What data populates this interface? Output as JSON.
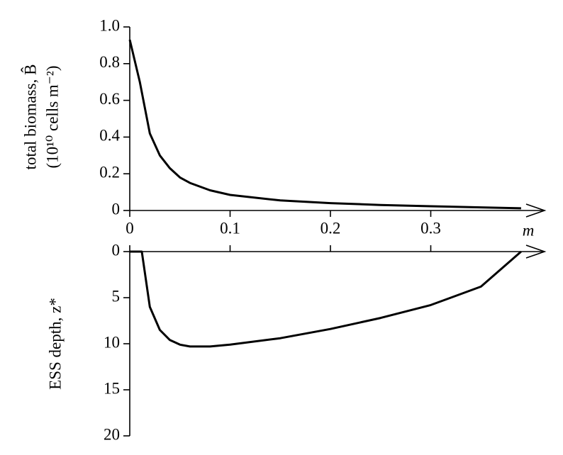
{
  "chart_data": [
    {
      "type": "line",
      "ylabel": [
        "total biomass, B̂",
        "(10¹⁰ cells m⁻²)"
      ],
      "xlabel": "m",
      "xlim": [
        0,
        0.4
      ],
      "xticks": [
        0,
        0.1,
        0.2,
        0.3
      ],
      "ylim": [
        0,
        1
      ],
      "yticks": [
        0,
        0.2,
        0.4,
        0.6,
        0.8,
        {
          "value": 1,
          "label": "1.0"
        }
      ],
      "y_inverted": false,
      "x_tick_labels": true,
      "series": [
        {
          "color": "#000000",
          "x": [
            0,
            0.01,
            0.02,
            0.03,
            0.04,
            0.05,
            0.06,
            0.08,
            0.1,
            0.15,
            0.2,
            0.25,
            0.3,
            0.35,
            0.39
          ],
          "values": [
            0.93,
            0.7,
            0.42,
            0.3,
            0.23,
            0.18,
            0.15,
            0.11,
            0.085,
            0.055,
            0.04,
            0.03,
            0.023,
            0.017,
            0.012
          ]
        }
      ]
    },
    {
      "type": "line",
      "ylabel": [
        "ESS depth, z*"
      ],
      "xlim": [
        0,
        0.4
      ],
      "xticks": [
        0,
        0.1,
        0.2,
        0.3
      ],
      "ylim": [
        0,
        20
      ],
      "yticks": [
        0,
        5,
        10,
        15,
        20
      ],
      "y_inverted": true,
      "x_tick_labels": false,
      "series": [
        {
          "color": "#000000",
          "x": [
            0,
            0.012,
            0.02,
            0.03,
            0.04,
            0.05,
            0.06,
            0.08,
            0.1,
            0.15,
            0.2,
            0.25,
            0.3,
            0.35,
            0.39
          ],
          "values": [
            0,
            0,
            6,
            8.5,
            9.6,
            10.1,
            10.3,
            10.3,
            10.1,
            9.4,
            8.4,
            7.2,
            5.8,
            3.8,
            0
          ]
        }
      ]
    }
  ]
}
